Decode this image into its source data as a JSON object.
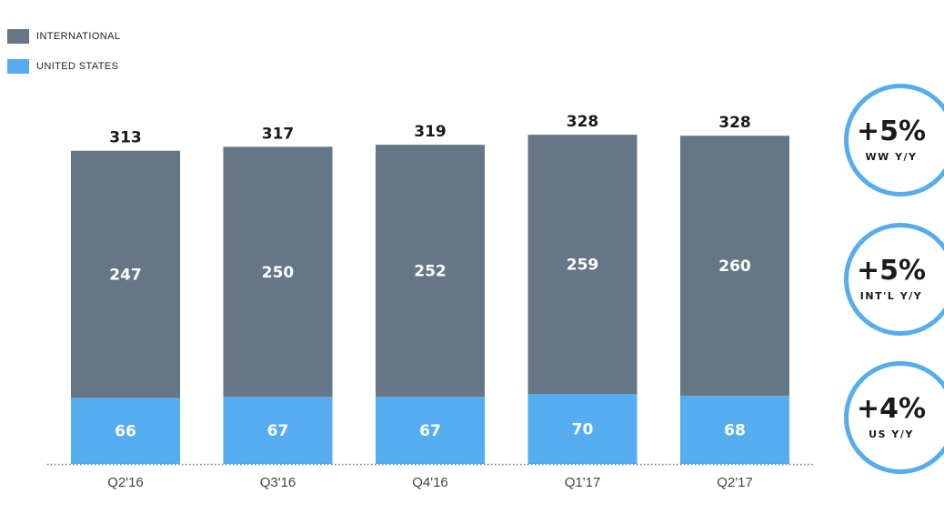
{
  "legend": [
    {
      "label": "INTERNATIONAL",
      "color": "#657786"
    },
    {
      "label": "UNITED STATES",
      "color": "#55acee"
    }
  ],
  "chart_data": {
    "type": "bar",
    "stacked": true,
    "categories": [
      "Q2'16",
      "Q3'16",
      "Q4'16",
      "Q1'17",
      "Q2'17"
    ],
    "series": [
      {
        "name": "UNITED STATES",
        "color": "#55acee",
        "values": [
          66,
          67,
          67,
          70,
          68
        ]
      },
      {
        "name": "INTERNATIONAL",
        "color": "#657786",
        "values": [
          247,
          250,
          252,
          259,
          260
        ]
      }
    ],
    "totals": [
      "313",
      "317",
      "319",
      "328",
      "328"
    ],
    "title": "",
    "xlabel": "",
    "ylabel": "",
    "legend_position": "top-left",
    "grid": false
  },
  "badges": [
    {
      "value": "+5%",
      "label": "WW Y/Y"
    },
    {
      "value": "+5%",
      "label": "INT'L Y/Y"
    },
    {
      "value": "+4%",
      "label": "US Y/Y"
    }
  ]
}
